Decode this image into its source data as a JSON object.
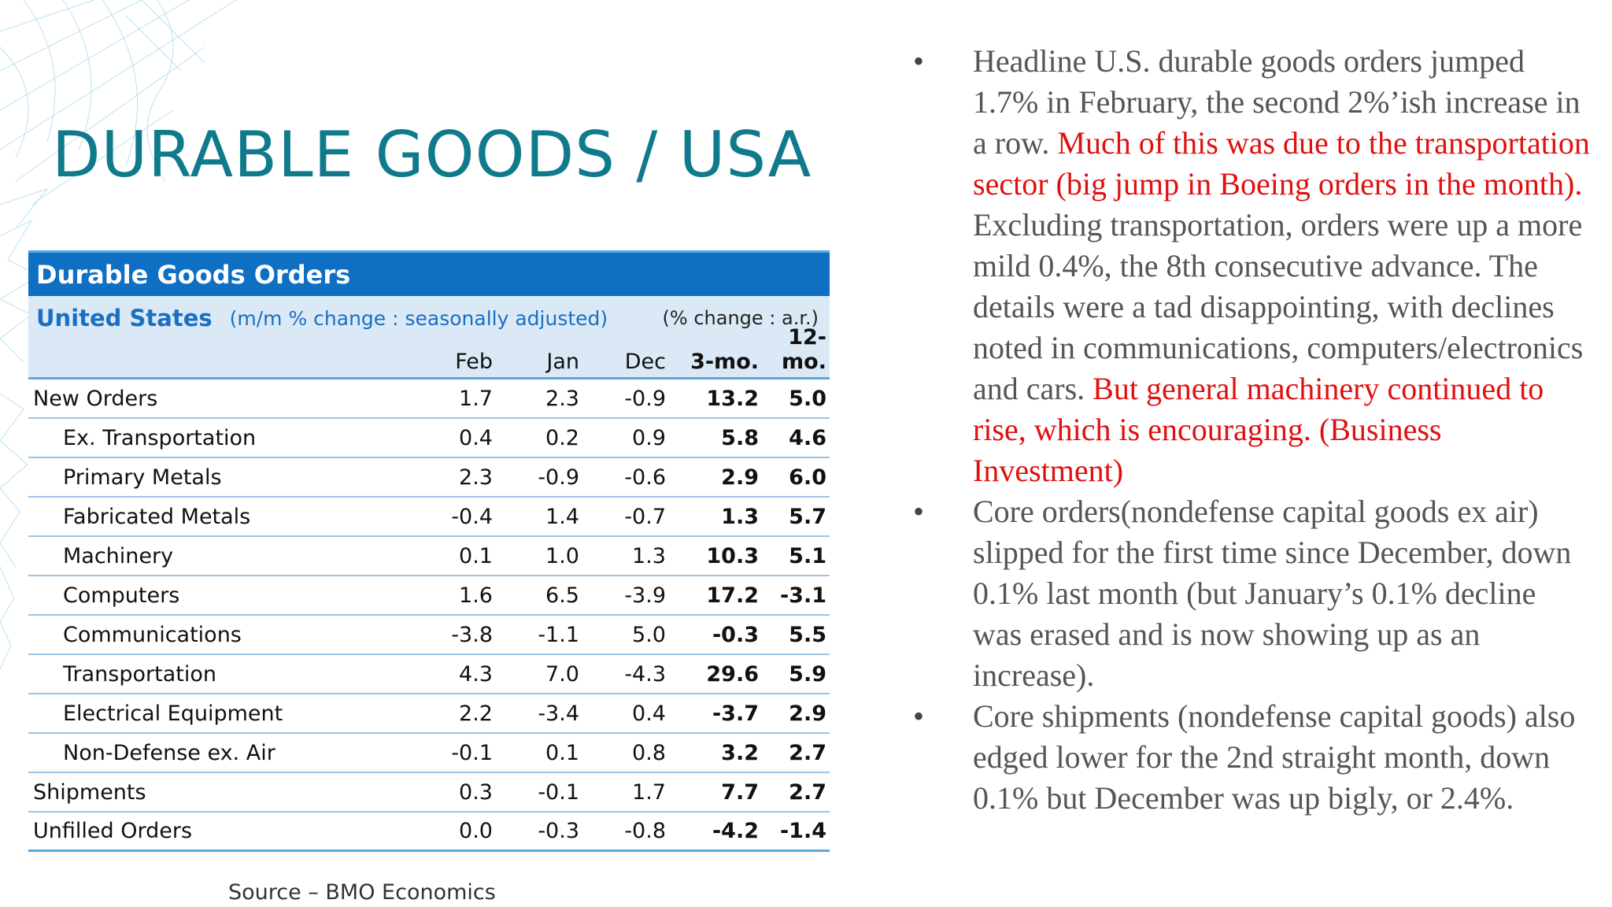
{
  "title": "DURABLE GOODS / USA",
  "table": {
    "header": "Durable Goods Orders",
    "country": "United States",
    "note": "(m/m % change : seasonally adjusted)",
    "right_note": "(% change : a.r.)",
    "columns": [
      "Feb",
      "Jan",
      "Dec",
      "3-mo.",
      "12-mo."
    ],
    "rows": [
      {
        "label": "New Orders",
        "values": [
          "1.7",
          "2.3",
          "-0.9",
          "13.2",
          "5.0"
        ]
      },
      {
        "label": "Ex. Transportation",
        "values": [
          "0.4",
          "0.2",
          "0.9",
          "5.8",
          "4.6"
        ]
      },
      {
        "label": "Primary Metals",
        "values": [
          "2.3",
          "-0.9",
          "-0.6",
          "2.9",
          "6.0"
        ]
      },
      {
        "label": "Fabricated Metals",
        "values": [
          "-0.4",
          "1.4",
          "-0.7",
          "1.3",
          "5.7"
        ]
      },
      {
        "label": "Machinery",
        "values": [
          "0.1",
          "1.0",
          "1.3",
          "10.3",
          "5.1"
        ]
      },
      {
        "label": "Computers",
        "values": [
          "1.6",
          "6.5",
          "-3.9",
          "17.2",
          "-3.1"
        ]
      },
      {
        "label": "Communications",
        "values": [
          "-3.8",
          "-1.1",
          "5.0",
          "-0.3",
          "5.5"
        ]
      },
      {
        "label": "Transportation",
        "values": [
          "4.3",
          "7.0",
          "-4.3",
          "29.6",
          "5.9"
        ]
      },
      {
        "label": "Electrical Equipment",
        "values": [
          "2.2",
          "-3.4",
          "0.4",
          "-3.7",
          "2.9"
        ]
      },
      {
        "label": "Non-Defense ex. Air",
        "values": [
          "-0.1",
          "0.1",
          "0.8",
          "3.2",
          "2.7"
        ]
      },
      {
        "label": "Shipments",
        "values": [
          "0.3",
          "-0.1",
          "1.7",
          "7.7",
          "2.7"
        ]
      },
      {
        "label": "Unfilled Orders",
        "values": [
          "0.0",
          "-0.3",
          "-0.8",
          "-4.2",
          "-1.4"
        ]
      }
    ]
  },
  "source": "Source – BMO Economics",
  "bullet_marker": "•",
  "bullets": [
    {
      "p1": "Headline U.S. durable  goods orders jumped 1.7% in February, the second 2%’ish increase in a row. ",
      "p2": "Much  of this was due to the transportation sector  (big jump in Boeing orders in the month). ",
      "p3": " Excluding transportation, orders were up a more mild 0.4%, the 8th consecutive  advance. The details were a tad disappointing, with declines noted in  communications, computers/electronics and cars. ",
      "p4": "But general machinery continued to  rise, which is encouraging. (Business Investment)"
    },
    {
      "text": "Core orders(nondefense capital goods ex air) slipped for  the first time since December, down 0.1% last month (but January’s 0.1% decline was erased and is now showing up as an increase)."
    },
    {
      "text": "Core shipments (nondefense  capital goods) also edged lower for the 2nd straight month, down 0.1% but December was up bigly, or 2.4%."
    }
  ],
  "colors": {
    "title": "#0f7a8c",
    "table_header": "#0f6fc2",
    "highlight": "#e01010"
  }
}
